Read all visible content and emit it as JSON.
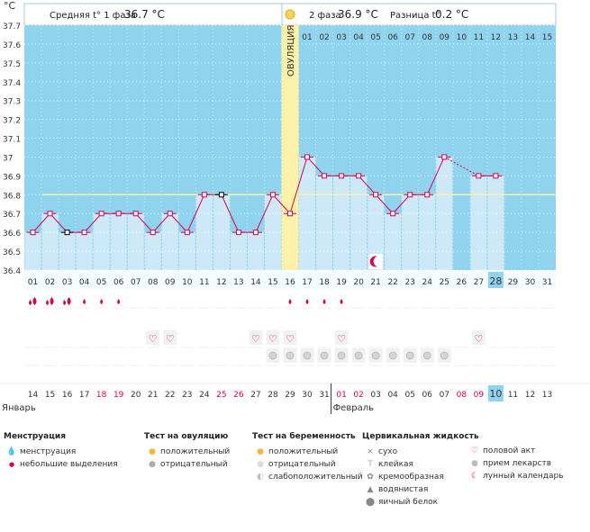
{
  "header": {
    "unit": "°C",
    "phase1_label": "Средняя t° 1 фаза",
    "phase1_value": "36.7 °C",
    "phase2_label": "2 фаза",
    "phase2_value": "36.9 °C",
    "diff_label": "Разница t°",
    "diff_value": "0.2 °C",
    "ovulation_label": "ОВУЛЯЦИЯ"
  },
  "y_labels": [
    "37.7",
    "37.6",
    "37.5",
    "37.4",
    "37.3",
    "37.2",
    "37.1",
    "37",
    "36.9",
    "36.8",
    "36.7",
    "36.6",
    "36.5",
    "36.4"
  ],
  "cycle_days": [
    "01",
    "02",
    "03",
    "04",
    "05",
    "06",
    "07",
    "08",
    "09",
    "10",
    "11",
    "12",
    "13",
    "14",
    "15",
    "16",
    "17",
    "18",
    "19",
    "20",
    "21",
    "22",
    "23",
    "24",
    "25",
    "26",
    "27",
    "28",
    "29",
    "30",
    "31"
  ],
  "phase2_day_labels": [
    "01",
    "02",
    "03",
    "04",
    "05",
    "06",
    "07",
    "08",
    "09",
    "10",
    "11",
    "12",
    "13",
    "14",
    "15"
  ],
  "dates": [
    "14",
    "15",
    "16",
    "17",
    "18",
    "19",
    "20",
    "21",
    "22",
    "23",
    "24",
    "25",
    "26",
    "27",
    "28",
    "29",
    "30",
    "31",
    "01",
    "02",
    "03",
    "04",
    "05",
    "06",
    "07",
    "08",
    "09",
    "10",
    "11",
    "12",
    "13"
  ],
  "months": {
    "first": "Январь",
    "second": "Февраль"
  },
  "current_day": "28",
  "current_date": "10",
  "chart_data": {
    "type": "line",
    "title": "",
    "ylabel": "°C",
    "ylim": [
      36.4,
      37.7
    ],
    "average_line": 36.8,
    "ovulation_day": 16,
    "temperatures": [
      36.6,
      36.7,
      36.6,
      36.6,
      36.7,
      36.7,
      36.7,
      36.6,
      36.7,
      36.6,
      36.8,
      36.8,
      36.6,
      36.6,
      36.8,
      36.7,
      37.0,
      36.9,
      36.9,
      36.9,
      36.8,
      36.7,
      36.8,
      36.8,
      37.0,
      null,
      36.9,
      36.9,
      null,
      null,
      null
    ],
    "special_marks": {
      "3": "black",
      "12": "black"
    }
  },
  "icons": {
    "menstruation_heavy_days": [
      1,
      2,
      3
    ],
    "menstruation_light_days": [
      4,
      5,
      6,
      16,
      17,
      18,
      19
    ],
    "intercourse_days": [
      8,
      9,
      14,
      15,
      16,
      19,
      27
    ],
    "medication_days": [
      15,
      16,
      17,
      18,
      19,
      20,
      21,
      22,
      23,
      24,
      25
    ],
    "moon_day": 21
  },
  "legend": {
    "menstruation": {
      "title": "Менструация",
      "items": [
        "менструация",
        "небольшие выделения"
      ]
    },
    "ovulation_test": {
      "title": "Тест на овуляцию",
      "items": [
        "положительный",
        "отрицательный"
      ]
    },
    "pregnancy_test": {
      "title": "Тест на беременность",
      "items": [
        "положительный",
        "отрицательный",
        "слабоположительный"
      ]
    },
    "cervical": {
      "title": "Цервикальная жидкость",
      "items": [
        "сухо",
        "клейкая",
        "кремообразная",
        "водянистая",
        "яичный белок"
      ]
    },
    "other": {
      "items": [
        "половой акт",
        "прием лекарств",
        "лунный календарь"
      ]
    }
  },
  "colors": {
    "chart_bg": "#8fd3ee",
    "bar_fill": "#cde9f8",
    "ovulation": "#fbf1a8",
    "line": "#d6004f",
    "avg_line": "#f7f2a6",
    "highlight": "#8fd3ee",
    "pink_text": "#d6004f"
  }
}
